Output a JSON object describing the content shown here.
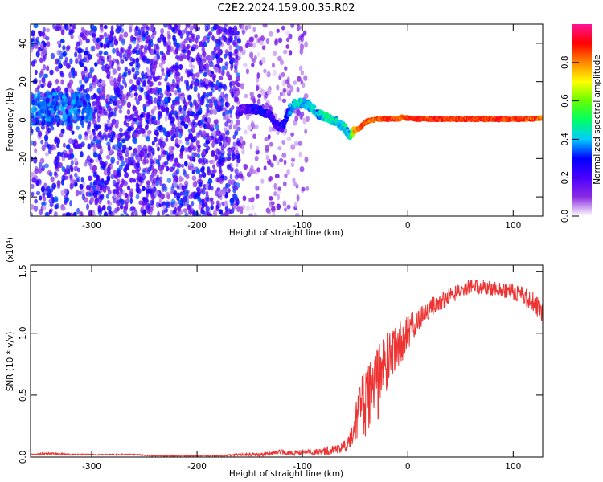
{
  "figure_title": "C2E2.2024.159.00.35.R02",
  "colorbar": {
    "label": "Normalized spectral amplitude",
    "ticks": [
      0.0,
      0.2,
      0.4,
      0.6,
      0.8
    ],
    "tick_labels": [
      "0.0",
      "0.2",
      "0.4",
      "0.6",
      "0.8"
    ],
    "range": [
      0,
      1
    ],
    "colormap": [
      "#ffffff",
      "#8a2be2",
      "#4b00ff",
      "#0000ff",
      "#00ccff",
      "#00ff66",
      "#66ff00",
      "#ffff00",
      "#ff8800",
      "#ff0000",
      "#ff1493"
    ]
  },
  "chart_data": [
    {
      "type": "heatmap",
      "title": "",
      "xlabel": "Height of straight line (km)",
      "ylabel": "Frequency (Hz)",
      "xlim": [
        -358,
        128
      ],
      "ylim": [
        -50,
        50
      ],
      "xticks": [
        -300,
        -200,
        -100,
        0,
        100
      ],
      "xtick_labels": [
        "-300",
        "-200",
        "-100",
        "0",
        "100"
      ],
      "yticks": [
        -40,
        -20,
        0,
        20,
        40
      ],
      "ytick_labels": [
        "-40",
        "-20",
        "0",
        "20",
        "40"
      ],
      "regions": [
        {
          "x_range": [
            -358,
            -160
          ],
          "f_range": [
            -50,
            50
          ],
          "amplitude": [
            0.05,
            0.35
          ],
          "description": "broadband noise, concentrated near 0-10 Hz for x < -300"
        },
        {
          "x_range": [
            -160,
            -95
          ],
          "f_range": [
            -50,
            50
          ],
          "amplitude": [
            0.02,
            0.15
          ],
          "description": "sparse faint streaks"
        }
      ],
      "ridge": {
        "x": [
          -160,
          -150,
          -140,
          -130,
          -125,
          -120,
          -115,
          -110,
          -105,
          -100,
          -95,
          -90,
          -85,
          -80,
          -75,
          -70,
          -65,
          -60,
          -55,
          -50,
          -45,
          -40,
          -35,
          -30,
          -20,
          -10,
          -5,
          0,
          10,
          30,
          60,
          90,
          110,
          128
        ],
        "f": [
          5,
          6,
          5,
          2,
          -2,
          -4,
          2,
          7,
          9,
          9,
          8,
          6,
          3,
          2,
          1,
          0,
          -2,
          -4,
          -8,
          -5,
          -4,
          -1,
          0,
          0.5,
          0.5,
          0.5,
          1.5,
          1,
          0.5,
          0.5,
          0.5,
          0.5,
          0.5,
          1
        ],
        "amplitude": [
          0.25,
          0.3,
          0.35,
          0.3,
          0.3,
          0.3,
          0.35,
          0.45,
          0.5,
          0.5,
          0.5,
          0.5,
          0.45,
          0.5,
          0.55,
          0.5,
          0.5,
          0.5,
          0.45,
          0.85,
          0.9,
          0.9,
          0.9,
          0.9,
          0.95,
          0.95,
          0.9,
          0.95,
          0.95,
          0.95,
          0.95,
          0.95,
          0.95,
          0.9
        ]
      }
    },
    {
      "type": "line",
      "title": "",
      "xlabel": "Height of straight line (km)",
      "ylabel": "SNR (10 * v/v)",
      "y_multiplier_label": "(x10⁴)",
      "xlim": [
        -358,
        128
      ],
      "ylim": [
        0,
        1.55
      ],
      "xticks": [
        -300,
        -200,
        -100,
        0,
        100
      ],
      "xtick_labels": [
        "-300",
        "-200",
        "-100",
        "0",
        "100"
      ],
      "yticks": [
        0.0,
        0.5,
        1.0,
        1.5
      ],
      "ytick_labels": [
        "0.0",
        "0.5",
        "1.0",
        "1.5"
      ],
      "series": [
        {
          "color": "#ee3333",
          "x": [
            -358,
            -340,
            -320,
            -300,
            -280,
            -260,
            -240,
            -220,
            -200,
            -180,
            -160,
            -140,
            -120,
            -110,
            -100,
            -90,
            -80,
            -70,
            -60,
            -55,
            -50,
            -45,
            -40,
            -35,
            -30,
            -25,
            -20,
            -15,
            -10,
            -5,
            0,
            10,
            20,
            30,
            40,
            50,
            60,
            70,
            80,
            90,
            100,
            110,
            120,
            128
          ],
          "y": [
            0.02,
            0.03,
            0.02,
            0.02,
            0.02,
            0.02,
            0.01,
            0.01,
            0.01,
            0.01,
            0.02,
            0.02,
            0.04,
            0.03,
            0.04,
            0.04,
            0.04,
            0.06,
            0.1,
            0.15,
            0.25,
            0.45,
            0.4,
            0.6,
            0.55,
            0.7,
            0.75,
            0.85,
            0.9,
            0.95,
            1.0,
            1.1,
            1.2,
            1.25,
            1.3,
            1.35,
            1.38,
            1.37,
            1.36,
            1.35,
            1.33,
            1.3,
            1.25,
            1.15
          ],
          "noise": [
            0.005,
            0.01,
            0.005,
            0.005,
            0.005,
            0.005,
            0.005,
            0.005,
            0.005,
            0.005,
            0.01,
            0.015,
            0.02,
            0.02,
            0.02,
            0.025,
            0.03,
            0.04,
            0.06,
            0.1,
            0.15,
            0.25,
            0.3,
            0.3,
            0.3,
            0.3,
            0.25,
            0.2,
            0.2,
            0.18,
            0.15,
            0.1,
            0.08,
            0.07,
            0.07,
            0.06,
            0.06,
            0.06,
            0.06,
            0.06,
            0.07,
            0.08,
            0.08,
            0.08
          ]
        }
      ]
    }
  ]
}
